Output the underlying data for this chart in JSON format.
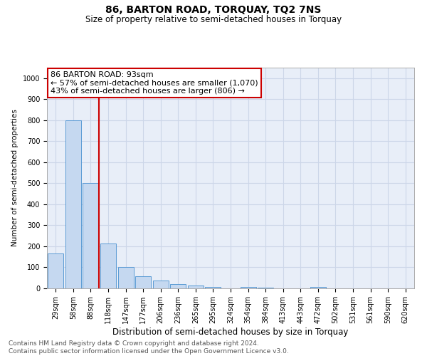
{
  "title": "86, BARTON ROAD, TORQUAY, TQ2 7NS",
  "subtitle": "Size of property relative to semi-detached houses in Torquay",
  "xlabel": "Distribution of semi-detached houses by size in Torquay",
  "ylabel": "Number of semi-detached properties",
  "footer_line1": "Contains HM Land Registry data © Crown copyright and database right 2024.",
  "footer_line2": "Contains public sector information licensed under the Open Government Licence v3.0.",
  "categories": [
    "29sqm",
    "58sqm",
    "88sqm",
    "118sqm",
    "147sqm",
    "177sqm",
    "206sqm",
    "236sqm",
    "265sqm",
    "295sqm",
    "324sqm",
    "354sqm",
    "384sqm",
    "413sqm",
    "443sqm",
    "472sqm",
    "502sqm",
    "531sqm",
    "561sqm",
    "590sqm",
    "620sqm"
  ],
  "values": [
    165,
    800,
    500,
    215,
    100,
    58,
    38,
    22,
    12,
    8,
    0,
    8,
    5,
    0,
    0,
    8,
    0,
    0,
    0,
    0,
    0
  ],
  "bar_color": "#c5d8f0",
  "bar_edge_color": "#5b9bd5",
  "annotation_line1": "86 BARTON ROAD: 93sqm",
  "annotation_line2": "← 57% of semi-detached houses are smaller (1,070)",
  "annotation_line3": "43% of semi-detached houses are larger (806) →",
  "annotation_box_color": "#ffffff",
  "annotation_box_edge_color": "#cc0000",
  "vline_x": 2.48,
  "vline_color": "#cc0000",
  "ylim": [
    0,
    1050
  ],
  "yticks": [
    0,
    100,
    200,
    300,
    400,
    500,
    600,
    700,
    800,
    900,
    1000
  ],
  "grid_color": "#ccd6e8",
  "background_color": "#e8eef8",
  "title_fontsize": 10,
  "subtitle_fontsize": 8.5,
  "xlabel_fontsize": 8.5,
  "ylabel_fontsize": 7.5,
  "tick_fontsize": 7,
  "annotation_fontsize": 8,
  "footer_fontsize": 6.5
}
